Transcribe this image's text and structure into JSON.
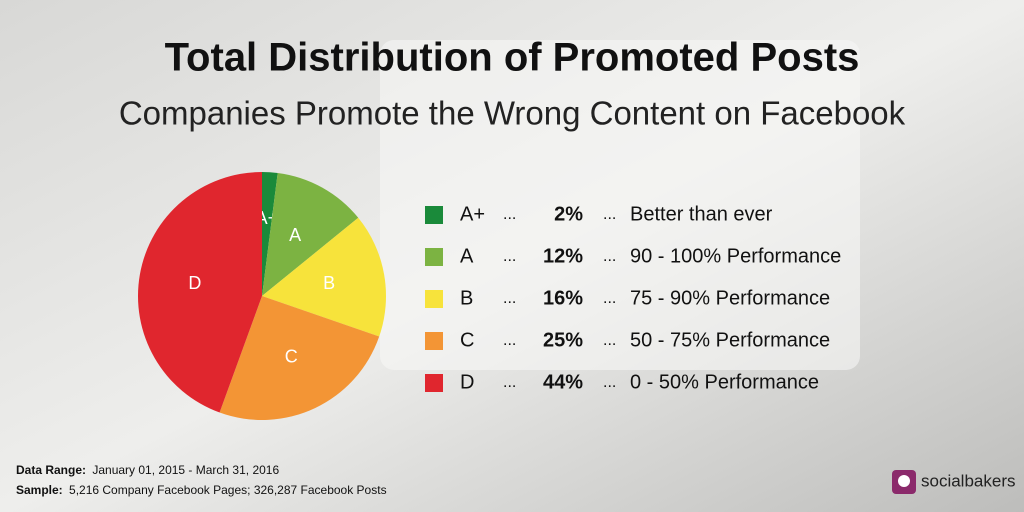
{
  "chart_data": {
    "type": "pie",
    "title": "Total Distribution of Promoted Posts",
    "subtitle": "Companies Promote the Wrong Content on Facebook",
    "categories": [
      "A+",
      "A",
      "B",
      "C",
      "D"
    ],
    "values": [
      2,
      12,
      16,
      25,
      44
    ],
    "value_labels": [
      "2%",
      "12%",
      "16%",
      "25%",
      "44%"
    ],
    "colors": [
      "#1a8a3a",
      "#7cb342",
      "#f7e33b",
      "#f39535",
      "#e0262e"
    ],
    "descriptions": [
      "Better than ever",
      "90 - 100% Performance",
      "75 - 90% Performance",
      "50 - 75% Performance",
      "0 - 50% Performance"
    ],
    "separator": "...",
    "footer": {
      "range_label": "Data Range:",
      "range_text": "January 01, 2015 - March 31, 2016",
      "sample_label": "Sample:",
      "sample_text": "5,216 Company Facebook Pages; 326,287 Facebook Posts"
    },
    "brand": "socialbakers"
  }
}
